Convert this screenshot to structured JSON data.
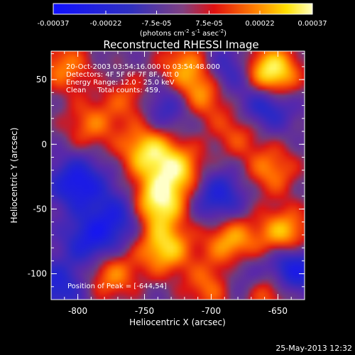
{
  "chart_data": {
    "type": "heatmap",
    "title": "Reconstructed RHESSI Image",
    "xlabel": "Heliocentric X (arcsec)",
    "ylabel": "Heliocentric Y (arcsec)",
    "xlim": [
      -820,
      -630
    ],
    "ylim": [
      -120,
      72
    ],
    "xticks": [
      -800,
      -750,
      -700,
      -650
    ],
    "yticks": [
      50,
      0,
      -50,
      -100
    ],
    "colorbar": {
      "range": [
        -0.00037,
        0.00037
      ],
      "ticks": [
        "-0.00037",
        "-0.00022",
        "-7.5e-05",
        "7.5e-05",
        "0.00022",
        "0.00037"
      ],
      "tick_values": [
        -0.00037,
        -0.00022,
        -7.5e-05,
        7.5e-05,
        0.00022,
        0.00037
      ],
      "unit_label": "(photons cm-2 s-1 asec-2)",
      "unit_parts": {
        "base": "(photons cm",
        "exp1": "-2",
        "s": " s",
        "exp2": "-1",
        "asec": " asec",
        "exp3": "-2",
        "close": ")"
      }
    },
    "annotations": [
      "20-Oct-2003 03:54:16.000 to 03:54:48.000",
      "Detectors: 4F 5F 6F 7F 8F, Att 0",
      "Energy Range: 12.0 - 25.0 keV",
      "Clean     Total counts: 459."
    ],
    "peak_label": "Position of Peak = [-644,54]",
    "peak": [
      -644,
      54
    ],
    "sources": [
      {
        "x": -655,
        "y": 55,
        "v": 1.0
      },
      {
        "x": -740,
        "y": -45,
        "v": 0.9
      },
      {
        "x": -748,
        "y": -5,
        "v": 0.75
      },
      {
        "x": -725,
        "y": -20,
        "v": 0.7
      },
      {
        "x": -735,
        "y": -80,
        "v": 0.75
      },
      {
        "x": -705,
        "y": 40,
        "v": 0.6
      },
      {
        "x": -720,
        "y": 60,
        "v": 0.55
      },
      {
        "x": -775,
        "y": -100,
        "v": 0.55
      },
      {
        "x": -685,
        "y": -75,
        "v": 0.65
      },
      {
        "x": -645,
        "y": -70,
        "v": 0.75
      },
      {
        "x": -660,
        "y": -112,
        "v": 0.65
      },
      {
        "x": -700,
        "y": -110,
        "v": 0.5
      },
      {
        "x": -655,
        "y": -20,
        "v": 0.5
      },
      {
        "x": -790,
        "y": 15,
        "v": 0.45
      },
      {
        "x": -810,
        "y": 60,
        "v": 0.5
      },
      {
        "x": -680,
        "y": 10,
        "v": 0.4
      },
      {
        "x": -760,
        "y": 35,
        "v": 0.4
      },
      {
        "x": -800,
        "y": -30,
        "v": -0.7
      },
      {
        "x": -790,
        "y": -75,
        "v": -0.6
      },
      {
        "x": -640,
        "y": -95,
        "v": -0.8
      },
      {
        "x": -660,
        "y": 30,
        "v": -0.6
      },
      {
        "x": -690,
        "y": 55,
        "v": -0.5
      },
      {
        "x": -695,
        "y": -40,
        "v": -0.55
      },
      {
        "x": -675,
        "y": -105,
        "v": -0.5
      },
      {
        "x": -770,
        "y": -55,
        "v": -0.5
      },
      {
        "x": -735,
        "y": 30,
        "v": -0.45
      },
      {
        "x": -815,
        "y": -110,
        "v": -0.5
      }
    ]
  },
  "footer": {
    "date": "25-May-2013 12:32"
  }
}
